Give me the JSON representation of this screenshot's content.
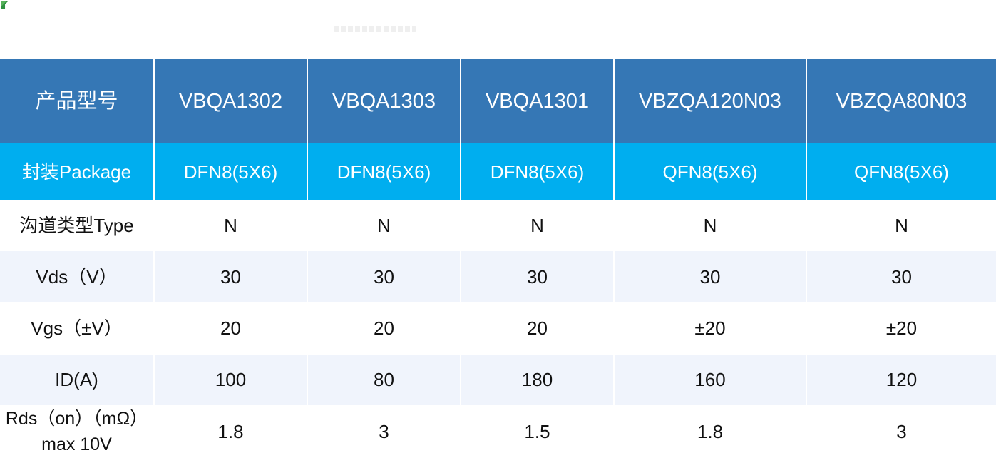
{
  "colors": {
    "header_bg": "#3577B5",
    "package_bg": "#00AEEF",
    "stripe_bg": "#F0F4FC",
    "header_text": "#FFFFFF",
    "body_text": "#111111"
  },
  "table": {
    "header": {
      "label": "产品型号",
      "models": [
        "VBQA1302",
        "VBQA1303",
        "VBQA1301",
        "VBZQA120N03",
        "VBZQA80N03"
      ]
    },
    "rows": [
      {
        "label": "封装Package",
        "values": [
          "DFN8(5X6)",
          "DFN8(5X6)",
          "DFN8(5X6)",
          "QFN8(5X6)",
          "QFN8(5X6)"
        ]
      },
      {
        "label": "沟道类型Type",
        "values": [
          "N",
          "N",
          "N",
          "N",
          "N"
        ]
      },
      {
        "label": "Vds（V）",
        "values": [
          "30",
          "30",
          "30",
          "30",
          "30"
        ]
      },
      {
        "label": "Vgs（±V）",
        "values": [
          "20",
          "20",
          "20",
          "±20",
          "±20"
        ]
      },
      {
        "label": "ID(A)",
        "values": [
          "100",
          "80",
          "180",
          "160",
          "120"
        ]
      },
      {
        "label": "Rds（on）（mΩ）max 10V",
        "values": [
          "1.8",
          "3",
          "1.5",
          "1.8",
          "3"
        ]
      }
    ]
  }
}
